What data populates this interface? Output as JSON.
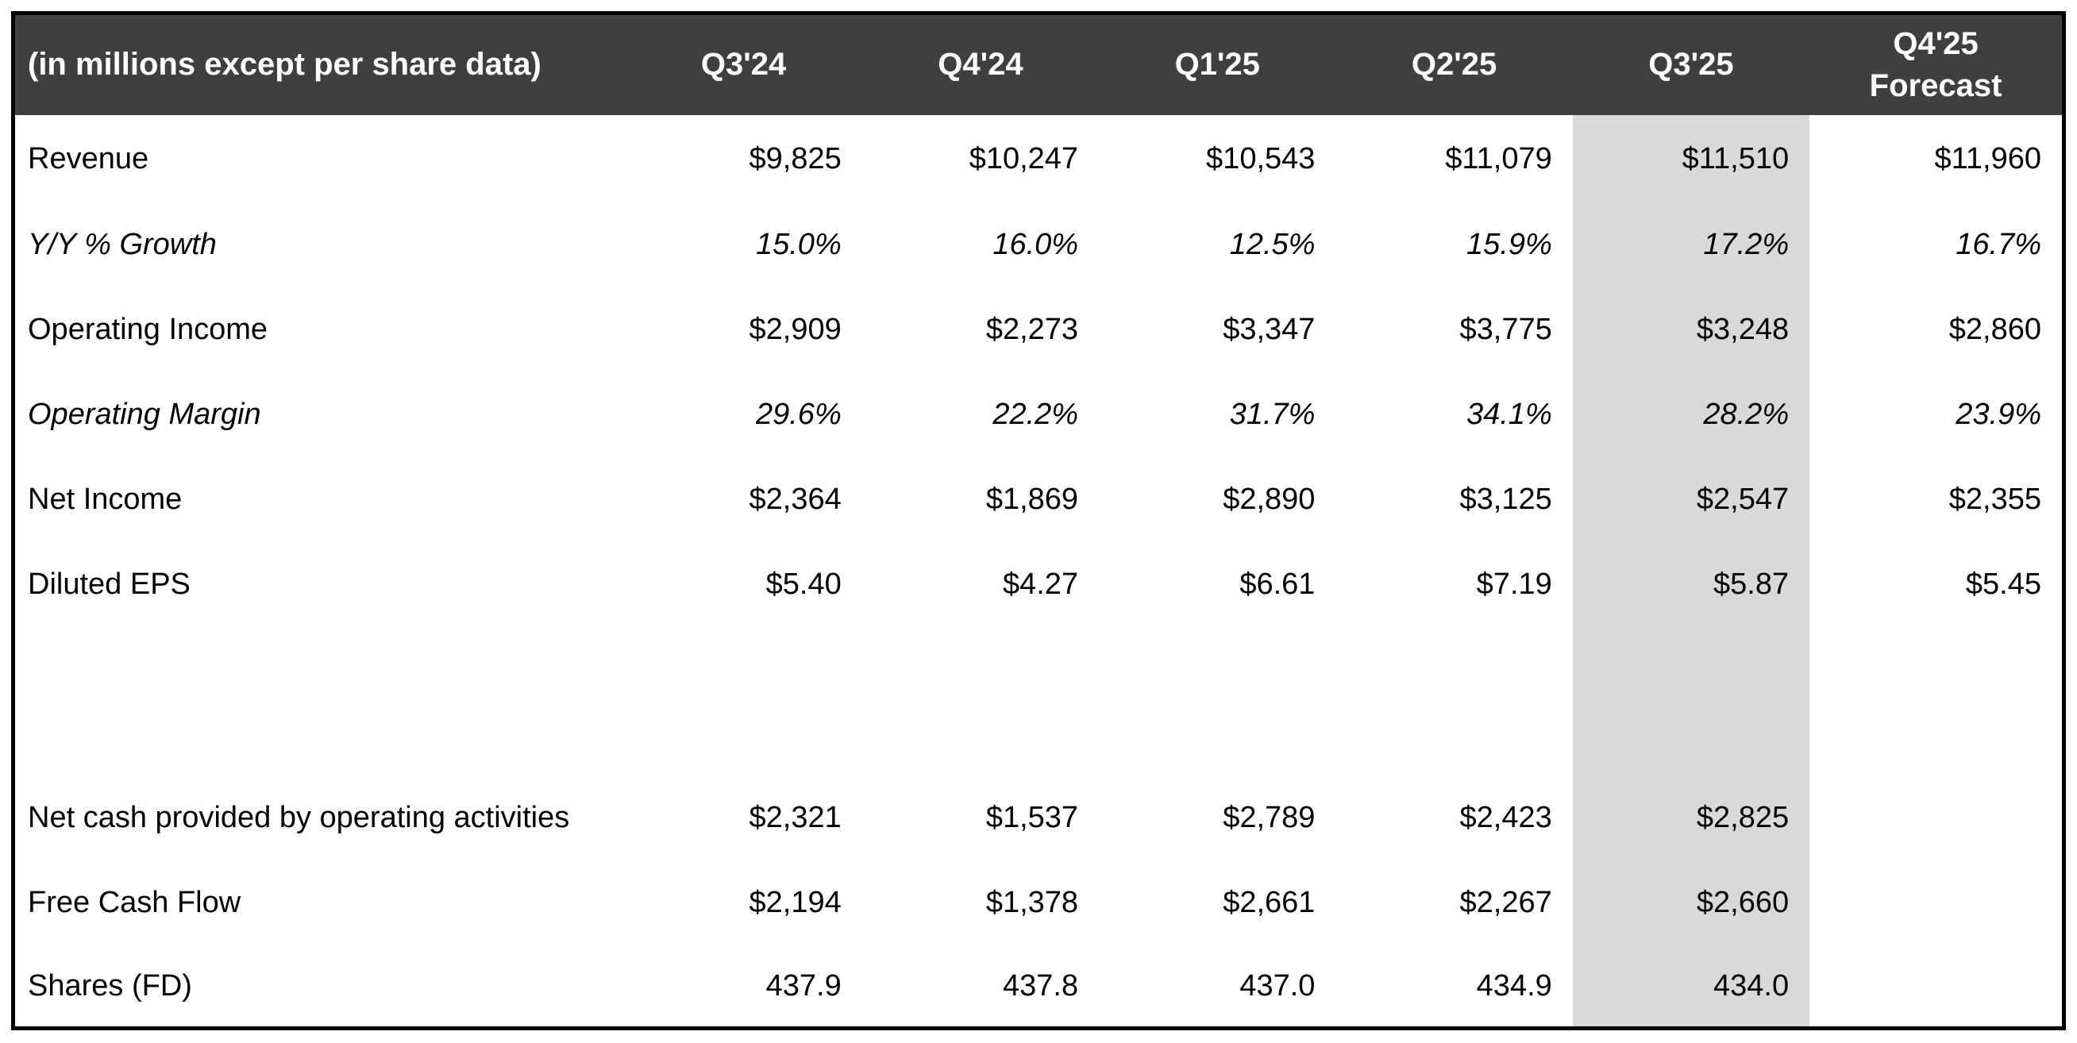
{
  "table": {
    "corner_label": "(in millions except per share data)",
    "columns": [
      "Q3'24",
      "Q4'24",
      "Q1'25",
      "Q2'25",
      "Q3'25",
      "Q4'25 Forecast"
    ],
    "highlight_column": "Q3'25",
    "rows": [
      {
        "label": "Revenue",
        "italic": false,
        "blank": false,
        "tall": false,
        "values": [
          "$9,825",
          "$10,247",
          "$10,543",
          "$11,079",
          "$11,510",
          "$11,960"
        ]
      },
      {
        "label": "Y/Y % Growth",
        "italic": true,
        "blank": false,
        "tall": false,
        "values": [
          "15.0%",
          "16.0%",
          "12.5%",
          "15.9%",
          "17.2%",
          "16.7%"
        ]
      },
      {
        "label": "Operating Income",
        "italic": false,
        "blank": false,
        "tall": false,
        "values": [
          "$2,909",
          "$2,273",
          "$3,347",
          "$3,775",
          "$3,248",
          "$2,860"
        ]
      },
      {
        "label": "Operating Margin",
        "italic": true,
        "blank": false,
        "tall": false,
        "values": [
          "29.6%",
          "22.2%",
          "31.7%",
          "34.1%",
          "28.2%",
          "23.9%"
        ]
      },
      {
        "label": "Net Income",
        "italic": false,
        "blank": false,
        "tall": false,
        "values": [
          "$2,364",
          "$1,869",
          "$2,890",
          "$3,125",
          "$2,547",
          "$2,355"
        ]
      },
      {
        "label": "Diluted EPS",
        "italic": false,
        "blank": false,
        "tall": false,
        "values": [
          "$5.40",
          "$4.27",
          "$6.61",
          "$7.19",
          "$5.87",
          "$5.45"
        ]
      },
      {
        "label": "",
        "italic": false,
        "blank": true,
        "tall": false,
        "values": [
          "",
          "",
          "",
          "",
          "",
          ""
        ]
      },
      {
        "label": "Net cash provided by operating activities",
        "italic": false,
        "blank": false,
        "tall": true,
        "values": [
          "$2,321",
          "$1,537",
          "$2,789",
          "$2,423",
          "$2,825",
          ""
        ]
      },
      {
        "label": "Free Cash Flow",
        "italic": false,
        "blank": false,
        "tall": false,
        "values": [
          "$2,194",
          "$1,378",
          "$2,661",
          "$2,267",
          "$2,660",
          ""
        ]
      },
      {
        "label": "Shares (FD)",
        "italic": false,
        "blank": false,
        "tall": false,
        "values": [
          "437.9",
          "437.8",
          "437.0",
          "434.9",
          "434.0",
          ""
        ]
      }
    ]
  },
  "colors": {
    "header_bg": "#3F3F3F",
    "header_text": "#FFFFFF",
    "highlight_bg": "#D9D9D9",
    "body_text": "#000000",
    "border": "#000000"
  },
  "chart_data": {
    "type": "table",
    "title": "(in millions except per share data)",
    "columns": [
      "Q3'24",
      "Q4'24",
      "Q1'25",
      "Q2'25",
      "Q3'25",
      "Q4'25 Forecast"
    ],
    "highlighted_column": "Q3'25",
    "rows": [
      {
        "metric": "Revenue",
        "unit": "USD millions",
        "values": [
          9825,
          10247,
          10543,
          11079,
          11510,
          11960
        ]
      },
      {
        "metric": "Y/Y % Growth",
        "unit": "percent",
        "values": [
          15.0,
          16.0,
          12.5,
          15.9,
          17.2,
          16.7
        ]
      },
      {
        "metric": "Operating Income",
        "unit": "USD millions",
        "values": [
          2909,
          2273,
          3347,
          3775,
          3248,
          2860
        ]
      },
      {
        "metric": "Operating Margin",
        "unit": "percent",
        "values": [
          29.6,
          22.2,
          31.7,
          34.1,
          28.2,
          23.9
        ]
      },
      {
        "metric": "Net Income",
        "unit": "USD millions",
        "values": [
          2364,
          1869,
          2890,
          3125,
          2547,
          2355
        ]
      },
      {
        "metric": "Diluted EPS",
        "unit": "USD",
        "values": [
          5.4,
          4.27,
          6.61,
          7.19,
          5.87,
          5.45
        ]
      },
      {
        "metric": "Net cash provided by operating activities",
        "unit": "USD millions",
        "values": [
          2321,
          1537,
          2789,
          2423,
          2825,
          null
        ]
      },
      {
        "metric": "Free Cash Flow",
        "unit": "USD millions",
        "values": [
          2194,
          1378,
          2661,
          2267,
          2660,
          null
        ]
      },
      {
        "metric": "Shares (FD)",
        "unit": "millions of shares",
        "values": [
          437.9,
          437.8,
          437.0,
          434.9,
          434.0,
          null
        ]
      }
    ]
  }
}
